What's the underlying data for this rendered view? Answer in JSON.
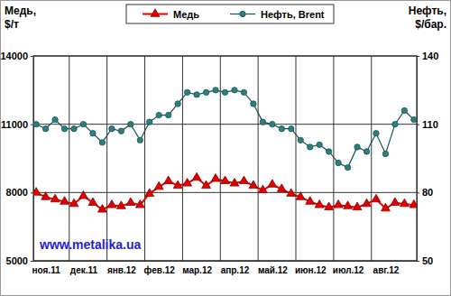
{
  "chart_data": {
    "type": "line",
    "categories": [
      null,
      "ноя.11",
      null,
      null,
      null,
      "дек.11",
      null,
      null,
      null,
      "янв.12",
      null,
      null,
      null,
      "фев.12",
      null,
      null,
      null,
      "мар.12",
      null,
      null,
      null,
      "апр.12",
      null,
      null,
      null,
      "май.12",
      null,
      null,
      null,
      "июн.12",
      null,
      null,
      null,
      "июл.12",
      null,
      null,
      null,
      "авг.12",
      null,
      null,
      null
    ],
    "series": [
      {
        "name": "Медь",
        "color": "#e00000",
        "marker": "triangle",
        "values": [
          8000,
          7800,
          7700,
          7600,
          7500,
          7850,
          7550,
          7250,
          7450,
          7400,
          7550,
          7450,
          7950,
          8250,
          8500,
          8300,
          8400,
          8650,
          8300,
          8600,
          8500,
          8400,
          8500,
          8300,
          8100,
          8350,
          8150,
          7950,
          7800,
          7600,
          7450,
          7350,
          7450,
          7400,
          7350,
          7500,
          7700,
          7300,
          7550,
          7500,
          7450
        ]
      },
      {
        "name": "Нефть, Brent",
        "color": "#2a8080",
        "marker": "circle",
        "axis": "y2",
        "values": [
          110,
          108,
          112,
          108,
          108,
          110,
          106,
          102,
          108,
          107,
          110,
          103,
          111,
          114,
          114,
          119,
          124,
          123,
          124,
          125,
          124,
          125,
          124,
          119,
          111,
          110,
          108,
          108,
          103,
          100,
          101,
          98,
          93,
          91,
          100,
          98,
          106,
          97,
          110,
          116,
          112
        ]
      }
    ],
    "ylim": [
      5000,
      14000
    ],
    "yticks": [
      5000,
      8000,
      11000,
      14000
    ],
    "y2lim": [
      50,
      140
    ],
    "y2ticks": [
      50,
      80,
      110,
      140
    ],
    "y_label": "Медь, $/т",
    "y2_label": "Нефть, $/бар.",
    "annotations": [
      "www.metalika.ua"
    ],
    "grid": true,
    "legend": "top"
  }
}
